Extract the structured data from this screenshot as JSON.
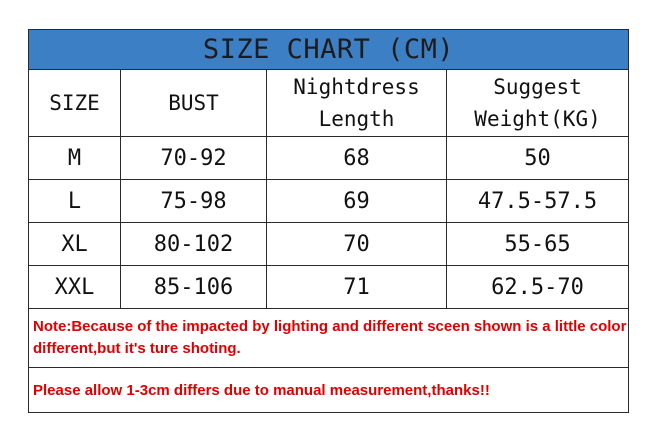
{
  "title": "SIZE CHART (CM)",
  "headers": [
    "SIZE",
    "BUST",
    "Nightdress\nLength",
    "Suggest\nWeight(KG)"
  ],
  "rows": [
    [
      "M",
      "70-92",
      "68",
      "50"
    ],
    [
      "L",
      "75-98",
      "69",
      "47.5-57.5"
    ],
    [
      "XL",
      "80-102",
      "70",
      "55-65"
    ],
    [
      "XXL",
      "85-106",
      "71",
      "62.5-70"
    ]
  ],
  "notes": [
    "Note:Because of the impacted by lighting and different sceen shown is a little color different,but it's ture shoting.",
    "Please allow 1-3cm differs due to manual measurement,thanks!!"
  ],
  "colors": {
    "title_bg": "#3d7fc4",
    "note_text": "#e00000"
  }
}
